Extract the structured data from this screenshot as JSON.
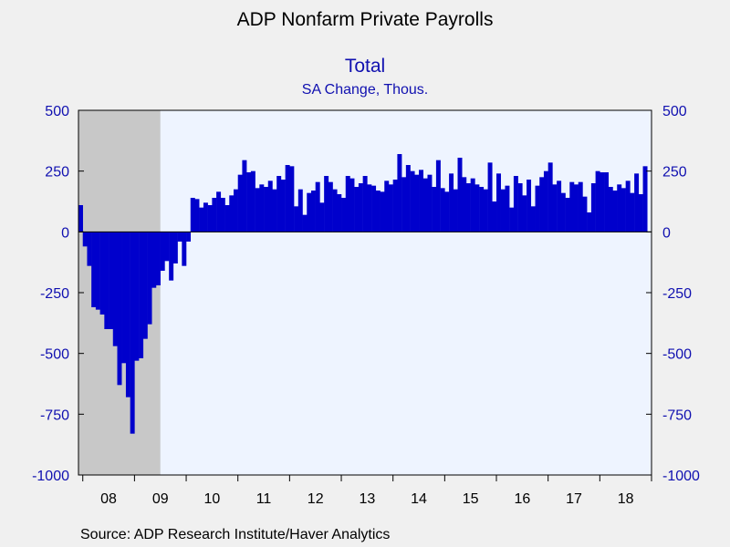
{
  "title": "ADP Nonfarm Private Payrolls",
  "subtitle": "Total",
  "unit_label": "SA Change, Thous.",
  "source": "Source:  ADP Research Institute/Haver Analytics",
  "colors": {
    "bar": "#0000cc",
    "axis_text": "#1010b0",
    "plot_bg": "#eef4ff",
    "recession": "#c8c8c8",
    "page_bg": "#f0f0f0"
  },
  "chart_data": {
    "type": "bar",
    "ylim": [
      -1000,
      500
    ],
    "yticks": [
      500,
      250,
      0,
      -250,
      -500,
      -750,
      -1000
    ],
    "ytick_labels": [
      "500",
      "250",
      "0",
      "-250",
      "-500",
      "-750",
      "-1000"
    ],
    "xtick_labels": [
      "08",
      "09",
      "10",
      "11",
      "12",
      "13",
      "14",
      "15",
      "16",
      "17",
      "18"
    ],
    "x_start": "2007-12",
    "x_end": "2018-12",
    "recession_shading": [
      "2007-12",
      "2009-06"
    ],
    "grid": false,
    "series": [
      {
        "values": [
          110,
          -60,
          -140,
          -310,
          -320,
          -340,
          -400,
          -400,
          -470,
          -630,
          -540,
          -680,
          -830,
          -530,
          -520,
          -440,
          -380,
          -230,
          -220,
          -160,
          -120,
          -200,
          -130,
          -40,
          -140,
          -40,
          140,
          135,
          100,
          120,
          110,
          140,
          165,
          140,
          110,
          150,
          175,
          235,
          295,
          245,
          250,
          180,
          195,
          185,
          210,
          175,
          230,
          215,
          275,
          270,
          105,
          175,
          70,
          160,
          170,
          205,
          120,
          230,
          205,
          175,
          155,
          140,
          230,
          220,
          185,
          200,
          230,
          195,
          190,
          170,
          165,
          210,
          195,
          215,
          320,
          225,
          275,
          250,
          235,
          255,
          220,
          235,
          185,
          295,
          180,
          165,
          240,
          175,
          305,
          225,
          200,
          220,
          195,
          185,
          175,
          285,
          125,
          240,
          175,
          190,
          100,
          230,
          200,
          150,
          215,
          105,
          190,
          225,
          250,
          285,
          195,
          210,
          160,
          140,
          205,
          195,
          205,
          145,
          80,
          200,
          250,
          245,
          245,
          185,
          170,
          195,
          180,
          210,
          160,
          240,
          155,
          270
        ]
      }
    ]
  }
}
